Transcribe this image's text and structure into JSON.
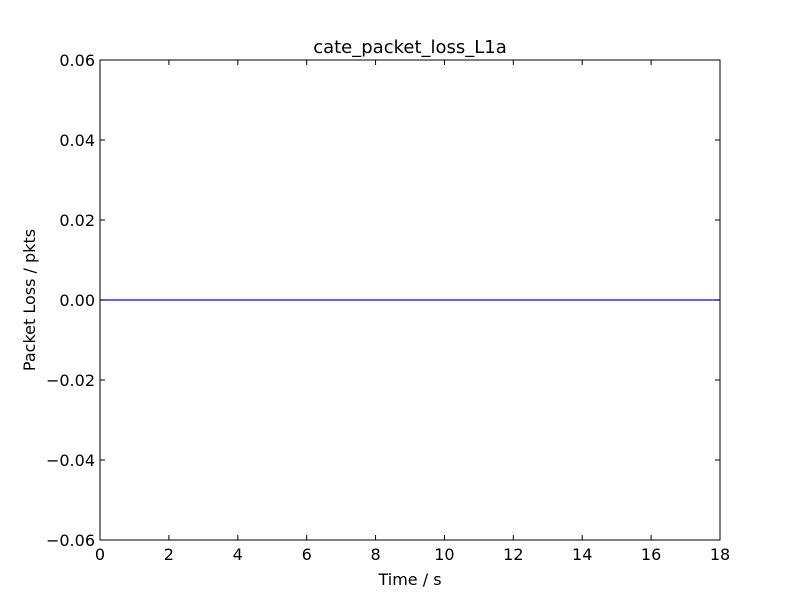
{
  "chart_data": {
    "type": "line",
    "title": "cate_packet_loss_L1a",
    "xlabel": "Time / s",
    "ylabel": "Packet Loss / pkts",
    "xlim": [
      0,
      18
    ],
    "ylim": [
      -0.06,
      0.06
    ],
    "x_ticks": [
      0,
      2,
      4,
      6,
      8,
      10,
      12,
      14,
      16,
      18
    ],
    "x_tick_labels": [
      "0",
      "2",
      "4",
      "6",
      "8",
      "10",
      "12",
      "14",
      "16",
      "18"
    ],
    "y_ticks": [
      -0.06,
      -0.04,
      -0.02,
      0.0,
      0.02,
      0.04,
      0.06
    ],
    "y_tick_labels": [
      "−0.06",
      "−0.04",
      "−0.02",
      "0.00",
      "0.02",
      "0.04",
      "0.06"
    ],
    "grid": false,
    "legend": "none",
    "series": [
      {
        "color": "#0000ff",
        "x": [
          0,
          18
        ],
        "y": [
          0,
          0
        ]
      }
    ]
  }
}
